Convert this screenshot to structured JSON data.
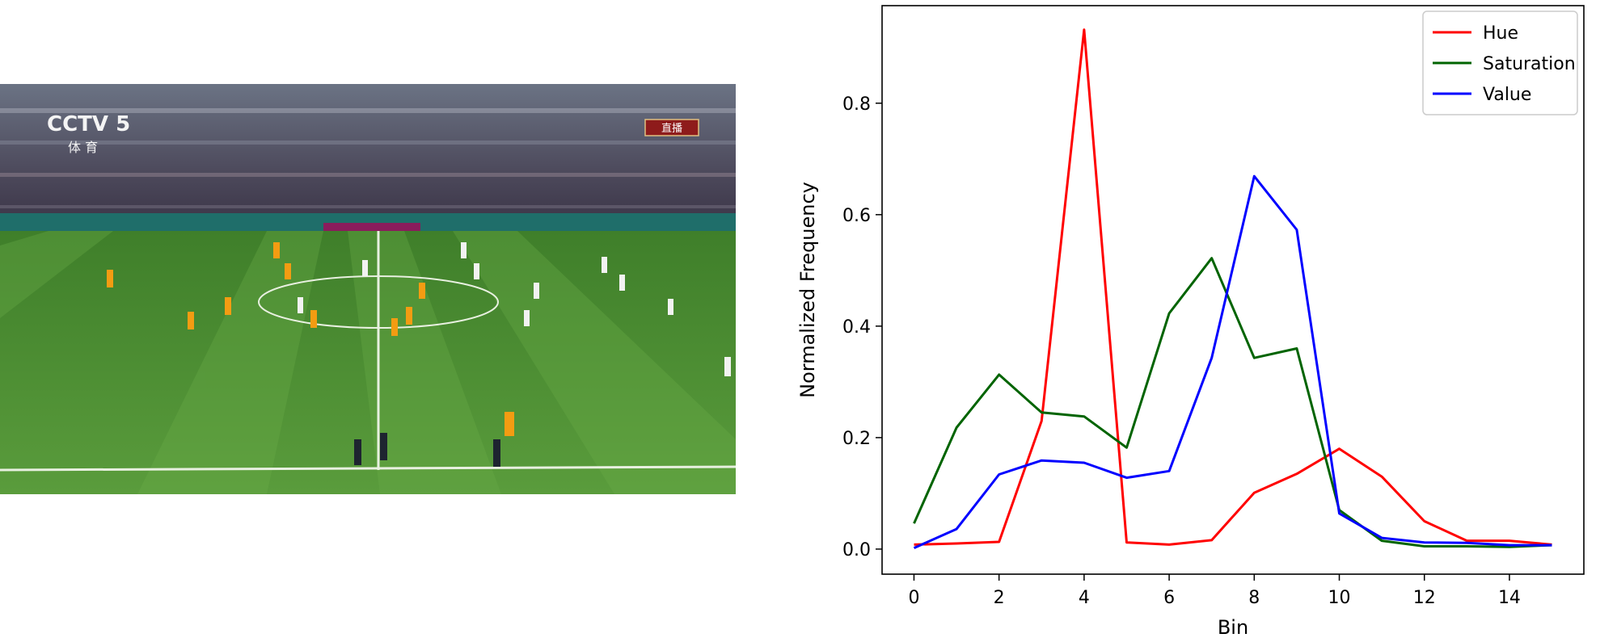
{
  "photo": {
    "broadcaster_logo": "CCTV 5",
    "broadcaster_sub": "体 育",
    "live_badge": "直播",
    "colors": {
      "pitch_light": "#5a9c3c",
      "pitch_dark": "#4a8a30",
      "team_a": "#f39c12",
      "team_b": "#f2f2f2",
      "stands": "#5a5f6e"
    }
  },
  "chart_data": {
    "type": "line",
    "xlabel": "Bin",
    "ylabel": "Normalized Frequency",
    "xlim": [
      -0.75,
      15.75
    ],
    "ylim": [
      -0.045,
      0.975
    ],
    "xticks": [
      "0",
      "2",
      "4",
      "6",
      "8",
      "10",
      "12",
      "14"
    ],
    "yticks": [
      "0.0",
      "0.2",
      "0.4",
      "0.6",
      "0.8"
    ],
    "legend_position": "top-right",
    "x": [
      0,
      1,
      2,
      3,
      4,
      5,
      6,
      7,
      8,
      9,
      10,
      11,
      12,
      13,
      14,
      15
    ],
    "series": [
      {
        "name": "Hue",
        "color": "#ff0000",
        "values": [
          0.008,
          0.01,
          0.013,
          0.23,
          0.932,
          0.012,
          0.008,
          0.016,
          0.101,
          0.135,
          0.18,
          0.13,
          0.05,
          0.015,
          0.015,
          0.008
        ]
      },
      {
        "name": "Saturation",
        "color": "#006400",
        "values": [
          0.046,
          0.218,
          0.313,
          0.245,
          0.238,
          0.182,
          0.423,
          0.522,
          0.343,
          0.36,
          0.07,
          0.015,
          0.005,
          0.005,
          0.004,
          0.007
        ]
      },
      {
        "name": "Value",
        "color": "#0000ff",
        "values": [
          0.002,
          0.036,
          0.134,
          0.159,
          0.155,
          0.128,
          0.14,
          0.343,
          0.669,
          0.573,
          0.064,
          0.02,
          0.012,
          0.011,
          0.007,
          0.007
        ]
      }
    ]
  }
}
